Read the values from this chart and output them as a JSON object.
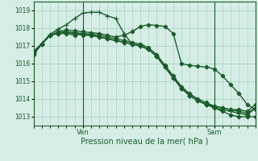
{
  "background_color": "#d5ede5",
  "grid_color": "#a8cfc0",
  "line_color": "#1a5c2a",
  "title": "Pression niveau de la mer( hPa )",
  "xlabel_ven": "Ven",
  "xlabel_sam": "Sam",
  "ylim": [
    1012.5,
    1019.5
  ],
  "yticks": [
    1013,
    1014,
    1015,
    1016,
    1017,
    1018,
    1019
  ],
  "series": [
    {
      "x": [
        0,
        1,
        2,
        3,
        4,
        5,
        6,
        7,
        8,
        9,
        10,
        11,
        12,
        13,
        14,
        15,
        16,
        17,
        18,
        19,
        20,
        21,
        22,
        23,
        24,
        25,
        26,
        27
      ],
      "y": [
        1016.5,
        1017.1,
        1017.6,
        1017.7,
        1017.7,
        1017.6,
        1017.7,
        1017.6,
        1017.5,
        1017.4,
        1017.3,
        1017.2,
        1017.1,
        1017.0,
        1016.8,
        1016.4,
        1015.8,
        1015.2,
        1014.6,
        1014.2,
        1013.9,
        1013.7,
        1013.5,
        1013.3,
        1013.1,
        1013.0,
        1013.0,
        1013.0
      ],
      "marker": "D",
      "ms": 2.5,
      "lw": 1.0
    },
    {
      "x": [
        0,
        1,
        2,
        3,
        4,
        5,
        6,
        7,
        8,
        9,
        10,
        11,
        12,
        13,
        14,
        15,
        16,
        17,
        18,
        19,
        20,
        21,
        22,
        23,
        24,
        25,
        26,
        27
      ],
      "y": [
        1016.6,
        1017.15,
        1017.65,
        1017.95,
        1018.2,
        1018.55,
        1018.85,
        1018.9,
        1018.9,
        1018.7,
        1018.55,
        1017.7,
        1017.1,
        1017.0,
        1016.8,
        1016.4,
        1015.8,
        1015.2,
        1014.6,
        1014.2,
        1013.9,
        1013.7,
        1013.5,
        1013.4,
        1013.3,
        1013.2,
        1013.1,
        1013.5
      ],
      "marker": "+",
      "ms": 4,
      "lw": 1.0
    },
    {
      "x": [
        0,
        1,
        2,
        3,
        4,
        5,
        6,
        7,
        8,
        9,
        10,
        11,
        12,
        13,
        14,
        15,
        16,
        17,
        18,
        19,
        20,
        21,
        22,
        23,
        24,
        25,
        26,
        27
      ],
      "y": [
        1016.7,
        1017.1,
        1017.6,
        1017.7,
        1017.75,
        1017.7,
        1017.6,
        1017.6,
        1017.5,
        1017.4,
        1017.3,
        1017.2,
        1017.1,
        1017.0,
        1016.8,
        1016.4,
        1015.8,
        1015.2,
        1014.6,
        1014.2,
        1013.9,
        1013.7,
        1013.6,
        1013.5,
        1013.4,
        1013.3,
        1013.2,
        1013.5
      ],
      "marker": "D",
      "ms": 2.5,
      "lw": 1.0
    },
    {
      "x": [
        0,
        1,
        2,
        3,
        4,
        5,
        6,
        7,
        8,
        9,
        10,
        11,
        12,
        13,
        14,
        15,
        16,
        17,
        18,
        19,
        20,
        21,
        22,
        23,
        24,
        25,
        26,
        27
      ],
      "y": [
        1016.65,
        1017.1,
        1017.6,
        1017.75,
        1017.8,
        1017.75,
        1017.7,
        1017.65,
        1017.6,
        1017.5,
        1017.4,
        1017.3,
        1017.2,
        1017.1,
        1016.9,
        1016.5,
        1015.9,
        1015.3,
        1014.7,
        1014.3,
        1014.0,
        1013.8,
        1013.6,
        1013.5,
        1013.4,
        1013.4,
        1013.3,
        1013.7
      ],
      "marker": "D",
      "ms": 2.5,
      "lw": 1.0
    },
    {
      "x": [
        0,
        1,
        2,
        3,
        4,
        5,
        6,
        7,
        8,
        9,
        10,
        11,
        12,
        13,
        14,
        15,
        16,
        17,
        18,
        19,
        20,
        21,
        22,
        23,
        24,
        25,
        26,
        27
      ],
      "y": [
        1016.6,
        1017.1,
        1017.6,
        1017.8,
        1017.9,
        1017.85,
        1017.8,
        1017.75,
        1017.7,
        1017.6,
        1017.5,
        1017.6,
        1017.8,
        1018.1,
        1018.2,
        1018.15,
        1018.1,
        1017.7,
        1016.0,
        1015.9,
        1015.85,
        1015.8,
        1015.7,
        1015.3,
        1014.8,
        1014.3,
        1013.7,
        1013.4
      ],
      "marker": "D",
      "ms": 2.5,
      "lw": 1.0
    }
  ],
  "ven_x": 6,
  "sam_x": 22,
  "xlim": [
    0,
    27
  ],
  "n_minor_x": 1
}
